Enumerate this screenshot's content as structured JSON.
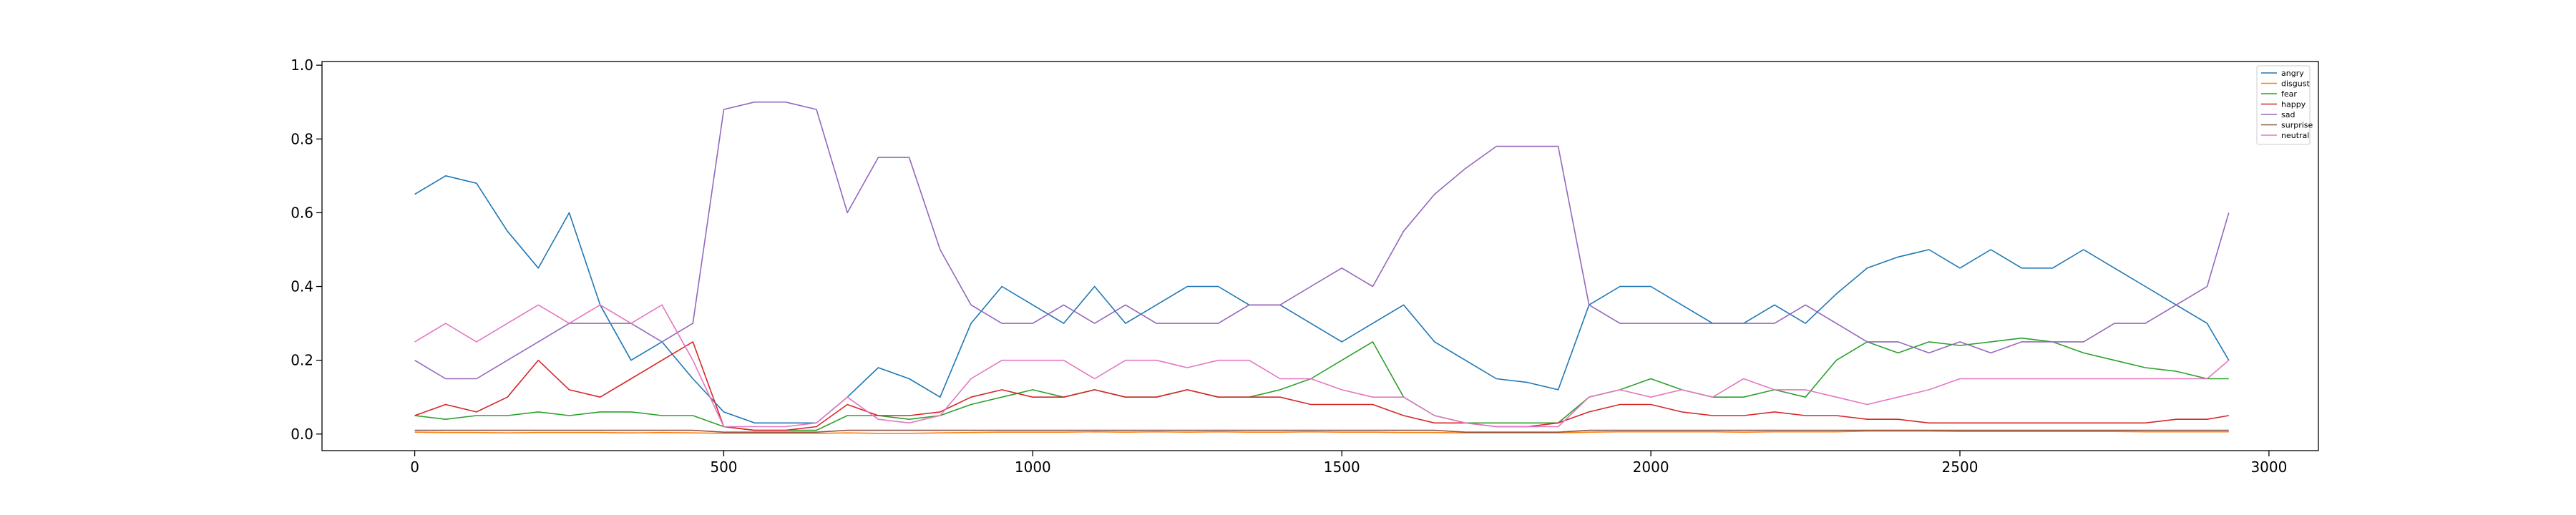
{
  "chart_data": {
    "type": "line",
    "title": "",
    "xlabel": "",
    "ylabel": "",
    "xlim": [
      -150,
      3080
    ],
    "ylim": [
      -0.045,
      1.01
    ],
    "x_ticks": [
      0,
      500,
      1000,
      1500,
      2000,
      2500,
      3000
    ],
    "x_tick_labels": [
      "0",
      "500",
      "1000",
      "1500",
      "2000",
      "2500",
      "3000"
    ],
    "y_ticks": [
      0.0,
      0.2,
      0.4,
      0.6,
      0.8,
      1.0
    ],
    "y_tick_labels": [
      "0.0",
      "0.2",
      "0.4",
      "0.6",
      "0.8",
      "1.0"
    ],
    "grid": false,
    "legend_position": "upper right",
    "x": [
      0,
      50,
      100,
      150,
      200,
      250,
      300,
      350,
      400,
      450,
      500,
      550,
      600,
      650,
      700,
      750,
      800,
      850,
      900,
      950,
      1000,
      1050,
      1100,
      1150,
      1200,
      1250,
      1300,
      1350,
      1400,
      1450,
      1500,
      1550,
      1600,
      1650,
      1700,
      1750,
      1800,
      1850,
      1900,
      1950,
      2000,
      2050,
      2100,
      2150,
      2200,
      2250,
      2300,
      2350,
      2400,
      2450,
      2500,
      2550,
      2600,
      2650,
      2700,
      2750,
      2800,
      2850,
      2900,
      2935
    ],
    "series": [
      {
        "name": "angry",
        "color": "#1f77b4",
        "values": [
          0.65,
          0.7,
          0.68,
          0.55,
          0.45,
          0.6,
          0.35,
          0.2,
          0.25,
          0.15,
          0.06,
          0.03,
          0.03,
          0.03,
          0.1,
          0.18,
          0.15,
          0.1,
          0.3,
          0.4,
          0.35,
          0.3,
          0.4,
          0.3,
          0.35,
          0.4,
          0.4,
          0.35,
          0.35,
          0.3,
          0.25,
          0.3,
          0.35,
          0.25,
          0.2,
          0.15,
          0.14,
          0.12,
          0.35,
          0.4,
          0.4,
          0.35,
          0.3,
          0.3,
          0.35,
          0.3,
          0.38,
          0.45,
          0.48,
          0.5,
          0.45,
          0.5,
          0.45,
          0.45,
          0.5,
          0.45,
          0.4,
          0.35,
          0.3,
          0.2
        ]
      },
      {
        "name": "disgust",
        "color": "#ff7f0e",
        "values": [
          0.005,
          0.004,
          0.004,
          0.003,
          0.004,
          0.004,
          0.004,
          0.003,
          0.004,
          0.003,
          0.002,
          0.002,
          0.002,
          0.002,
          0.003,
          0.002,
          0.002,
          0.003,
          0.004,
          0.005,
          0.005,
          0.005,
          0.006,
          0.005,
          0.006,
          0.005,
          0.006,
          0.005,
          0.005,
          0.006,
          0.005,
          0.005,
          0.004,
          0.004,
          0.003,
          0.003,
          0.003,
          0.003,
          0.005,
          0.006,
          0.006,
          0.006,
          0.006,
          0.005,
          0.006,
          0.006,
          0.006,
          0.008,
          0.008,
          0.008,
          0.007,
          0.007,
          0.007,
          0.007,
          0.007,
          0.007,
          0.006,
          0.006,
          0.006,
          0.006
        ]
      },
      {
        "name": "fear",
        "color": "#2ca02c",
        "values": [
          0.05,
          0.04,
          0.05,
          0.05,
          0.06,
          0.05,
          0.06,
          0.06,
          0.05,
          0.05,
          0.02,
          0.01,
          0.01,
          0.01,
          0.05,
          0.05,
          0.04,
          0.05,
          0.08,
          0.1,
          0.12,
          0.1,
          0.12,
          0.1,
          0.1,
          0.12,
          0.1,
          0.1,
          0.12,
          0.15,
          0.2,
          0.25,
          0.1,
          0.05,
          0.03,
          0.03,
          0.03,
          0.03,
          0.1,
          0.12,
          0.15,
          0.12,
          0.1,
          0.1,
          0.12,
          0.1,
          0.2,
          0.25,
          0.22,
          0.25,
          0.24,
          0.25,
          0.26,
          0.25,
          0.22,
          0.2,
          0.18,
          0.17,
          0.15,
          0.15
        ]
      },
      {
        "name": "happy",
        "color": "#d62728",
        "values": [
          0.05,
          0.08,
          0.06,
          0.1,
          0.2,
          0.12,
          0.1,
          0.15,
          0.2,
          0.25,
          0.02,
          0.01,
          0.01,
          0.02,
          0.08,
          0.05,
          0.05,
          0.06,
          0.1,
          0.12,
          0.1,
          0.1,
          0.12,
          0.1,
          0.1,
          0.12,
          0.1,
          0.1,
          0.1,
          0.08,
          0.08,
          0.08,
          0.05,
          0.03,
          0.03,
          0.02,
          0.02,
          0.03,
          0.06,
          0.08,
          0.08,
          0.06,
          0.05,
          0.05,
          0.06,
          0.05,
          0.05,
          0.04,
          0.04,
          0.03,
          0.03,
          0.03,
          0.03,
          0.03,
          0.03,
          0.03,
          0.03,
          0.04,
          0.04,
          0.05
        ]
      },
      {
        "name": "sad",
        "color": "#9467bd",
        "values": [
          0.2,
          0.15,
          0.15,
          0.2,
          0.25,
          0.3,
          0.3,
          0.3,
          0.25,
          0.3,
          0.88,
          0.9,
          0.9,
          0.88,
          0.6,
          0.75,
          0.75,
          0.5,
          0.35,
          0.3,
          0.3,
          0.35,
          0.3,
          0.35,
          0.3,
          0.3,
          0.3,
          0.35,
          0.35,
          0.4,
          0.45,
          0.4,
          0.55,
          0.65,
          0.72,
          0.78,
          0.78,
          0.78,
          0.35,
          0.3,
          0.3,
          0.3,
          0.3,
          0.3,
          0.3,
          0.35,
          0.3,
          0.25,
          0.25,
          0.22,
          0.25,
          0.22,
          0.25,
          0.25,
          0.25,
          0.3,
          0.3,
          0.35,
          0.4,
          0.6
        ]
      },
      {
        "name": "surprise",
        "color": "#8c564b",
        "values": [
          0.01,
          0.01,
          0.01,
          0.01,
          0.01,
          0.01,
          0.01,
          0.01,
          0.01,
          0.01,
          0.005,
          0.005,
          0.005,
          0.005,
          0.01,
          0.01,
          0.01,
          0.01,
          0.01,
          0.01,
          0.01,
          0.01,
          0.01,
          0.01,
          0.01,
          0.01,
          0.01,
          0.01,
          0.01,
          0.01,
          0.01,
          0.01,
          0.01,
          0.01,
          0.005,
          0.005,
          0.005,
          0.005,
          0.01,
          0.01,
          0.01,
          0.01,
          0.01,
          0.01,
          0.01,
          0.01,
          0.01,
          0.01,
          0.01,
          0.01,
          0.01,
          0.01,
          0.01,
          0.01,
          0.01,
          0.01,
          0.01,
          0.01,
          0.01,
          0.01
        ]
      },
      {
        "name": "neutral",
        "color": "#e377c2",
        "values": [
          0.25,
          0.3,
          0.25,
          0.3,
          0.35,
          0.3,
          0.35,
          0.3,
          0.35,
          0.2,
          0.02,
          0.02,
          0.02,
          0.03,
          0.1,
          0.04,
          0.03,
          0.05,
          0.15,
          0.2,
          0.2,
          0.2,
          0.15,
          0.2,
          0.2,
          0.18,
          0.2,
          0.2,
          0.15,
          0.15,
          0.12,
          0.1,
          0.1,
          0.05,
          0.03,
          0.02,
          0.02,
          0.02,
          0.1,
          0.12,
          0.1,
          0.12,
          0.1,
          0.15,
          0.12,
          0.12,
          0.1,
          0.08,
          0.1,
          0.12,
          0.15,
          0.15,
          0.15,
          0.15,
          0.15,
          0.15,
          0.15,
          0.15,
          0.15,
          0.2
        ]
      }
    ]
  }
}
